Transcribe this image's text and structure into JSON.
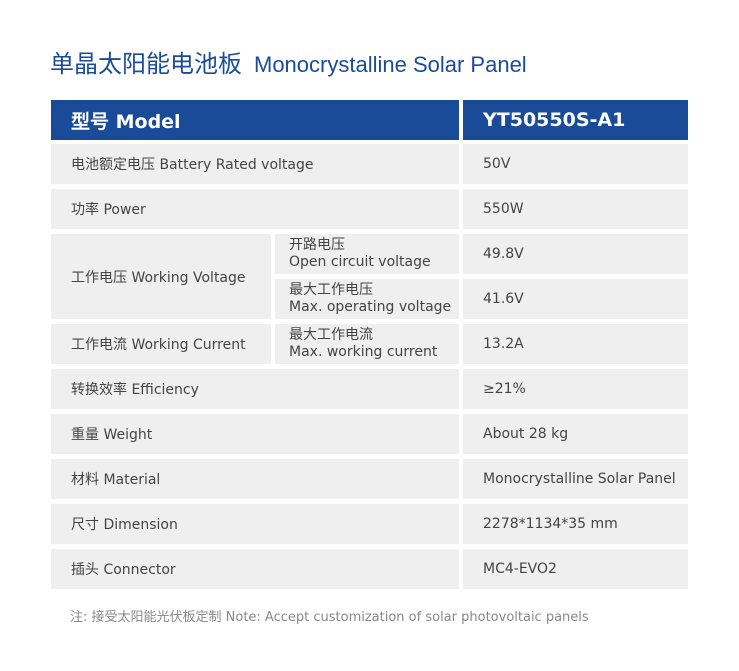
{
  "title": {
    "cn": "单晶太阳能电池板",
    "en": "Monocrystalline Solar Panel"
  },
  "header": {
    "label": "型号 Model",
    "value": "YT50550S-A1"
  },
  "rows": [
    {
      "label": "电池额定电压 Battery Rated voltage",
      "value": "50V"
    },
    {
      "label": "功率 Power",
      "value": "550W"
    },
    {
      "label": "工作电压 Working Voltage",
      "subs": [
        {
          "cn": "开路电压",
          "en": "Open circuit voltage",
          "value": "49.8V"
        },
        {
          "cn": "最大工作电压",
          "en": "Max. operating voltage",
          "value": "41.6V"
        }
      ]
    },
    {
      "label": "工作电流 Working Current",
      "subs": [
        {
          "cn": "最大工作电流",
          "en": "Max. working current",
          "value": "13.2A"
        }
      ]
    },
    {
      "label": "转换效率 Efficiency",
      "value": "≥21%"
    },
    {
      "label": "重量 Weight",
      "value": "About 28 kg"
    },
    {
      "label": "材料 Material",
      "value": "Monocrystalline Solar Panel"
    },
    {
      "label": "尺寸 Dimension",
      "value": "2278*1134*35 mm"
    },
    {
      "label": "插头 Connector",
      "value": "MC4-EVO2"
    }
  ],
  "note": "注: 接受太阳能光伏板定制  Note: Accept customization of solar photovoltaic panels"
}
